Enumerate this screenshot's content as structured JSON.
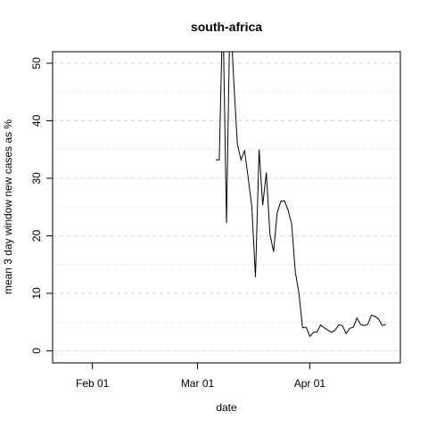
{
  "chart_data": {
    "type": "line",
    "title": "south-africa",
    "x_label": "date",
    "y_label": "mean  3  day window new cases as %",
    "x": [
      "Mar 06",
      "Mar 07",
      "Mar 08",
      "Mar 09",
      "Mar 10",
      "Mar 11",
      "Mar 12",
      "Mar 13",
      "Mar 14",
      "Mar 15",
      "Mar 16",
      "Mar 17",
      "Mar 18",
      "Mar 19",
      "Mar 20",
      "Mar 21",
      "Mar 22",
      "Mar 23",
      "Mar 24",
      "Mar 25",
      "Mar 26",
      "Mar 27",
      "Mar 28",
      "Mar 29",
      "Mar 30",
      "Mar 31",
      "Apr 01",
      "Apr 02",
      "Apr 03",
      "Apr 04",
      "Apr 05",
      "Apr 06",
      "Apr 07",
      "Apr 08",
      "Apr 09",
      "Apr 10",
      "Apr 11",
      "Apr 12",
      "Apr 13",
      "Apr 14",
      "Apr 15",
      "Apr 16",
      "Apr 17",
      "Apr 18",
      "Apr 19",
      "Apr 20",
      "Apr 21",
      "Apr 22"
    ],
    "series": [
      {
        "name": "south-africa",
        "color": "#000000",
        "values": [
          33.2,
          33.2,
          60,
          22.2,
          60,
          47,
          36,
          33.2,
          34.8,
          30,
          25,
          12.8,
          35,
          25.3,
          31,
          20.3,
          17.2,
          24,
          26,
          26.1,
          24.5,
          22,
          13.7,
          10,
          4,
          4.1,
          2.5,
          3.2,
          3.3,
          4.5,
          4,
          3.6,
          3.2,
          3.6,
          4.5,
          4.4,
          3,
          3.9,
          4.1,
          5.7,
          4.6,
          4.4,
          4.6,
          6.2,
          6,
          5.5,
          4.4,
          4.6
        ]
      }
    ],
    "xlim": [
      "Jan 21",
      "Apr 26"
    ],
    "xticks": [
      "Feb 01",
      "Mar 01",
      "Apr 01"
    ],
    "ylim": [
      -2.1,
      52
    ],
    "yticks": [
      0,
      10,
      20,
      30,
      40,
      50
    ],
    "minor_gridlines": [
      5,
      15,
      25,
      35,
      45
    ],
    "grid": true
  }
}
